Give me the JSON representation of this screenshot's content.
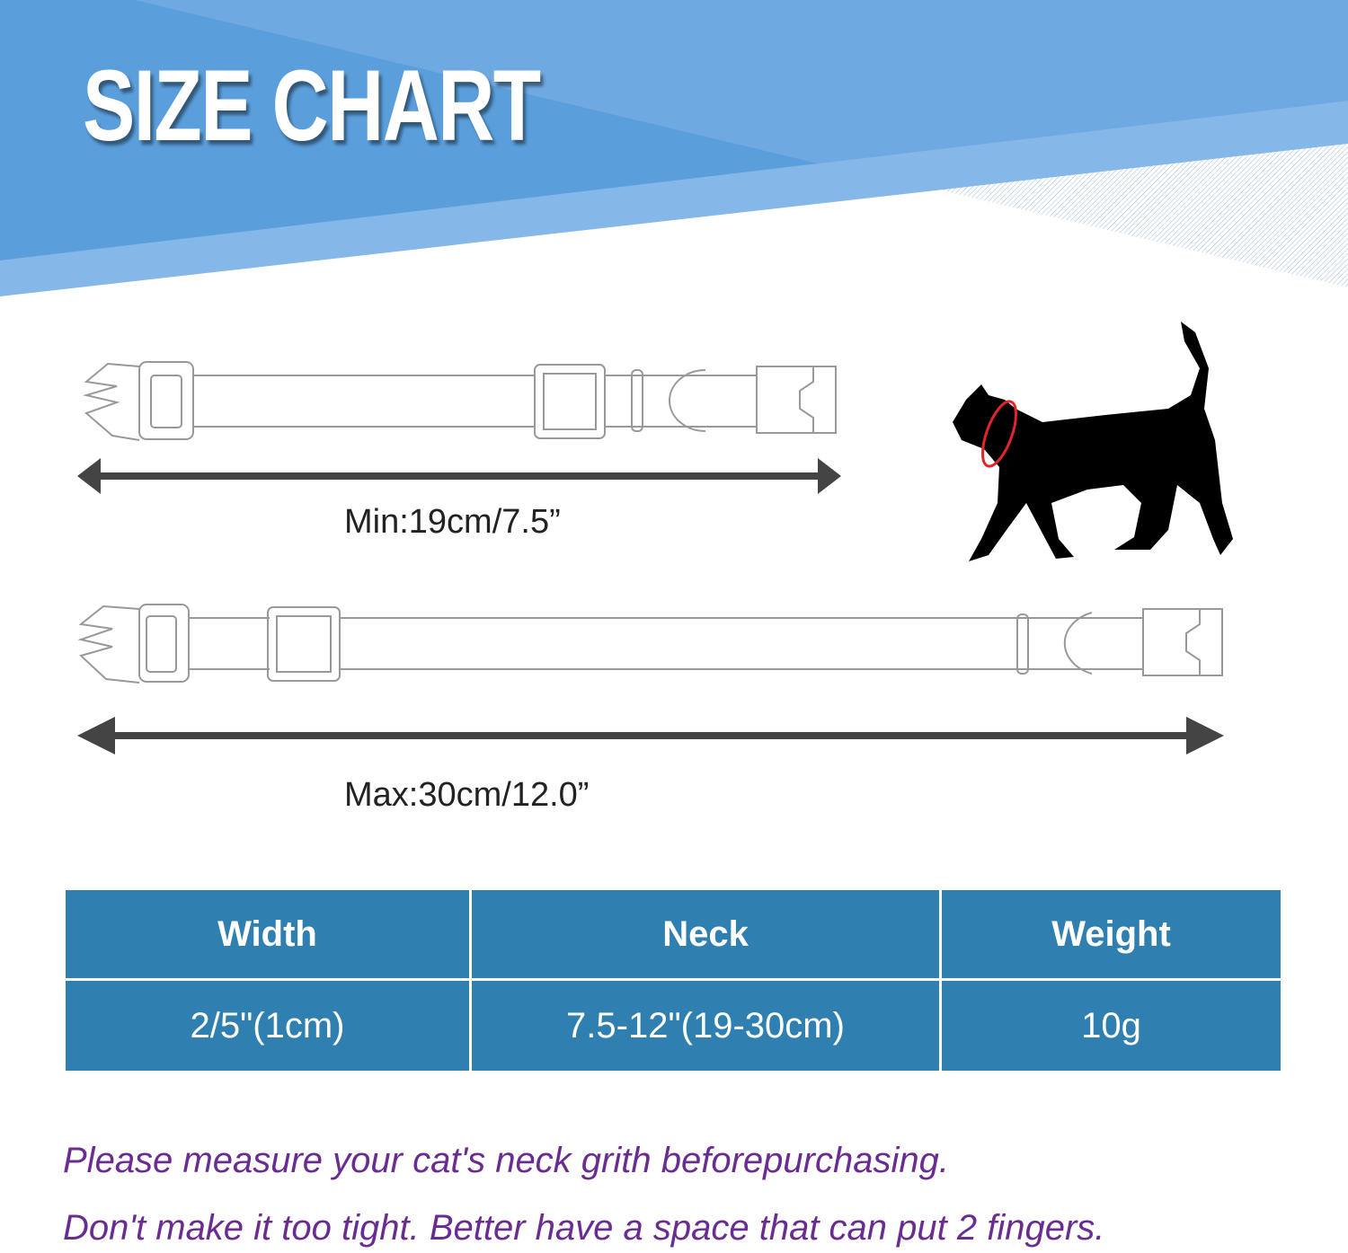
{
  "title": "SIZE CHART",
  "colors": {
    "header_dark": "#5a9fdc",
    "header_light": "#6fa9e2",
    "header_stripe": "#85b8e8",
    "table_fill": "#2f80b0",
    "note_text": "#6a2c91",
    "cat_collar": "#e0262a"
  },
  "collars": {
    "min_label": "Min:19cm/7.5”",
    "max_label": "Max:30cm/12.0”"
  },
  "table": {
    "headers": [
      "Width",
      "Neck",
      "Weight"
    ],
    "rows": [
      [
        "2/5\"(1cm)",
        "7.5-12\"(19-30cm)",
        "10g"
      ]
    ]
  },
  "notes": [
    "Please measure your cat's neck grith beforepurchasing.",
    "Don't make it too tight. Better have a space that can put 2 fingers."
  ]
}
